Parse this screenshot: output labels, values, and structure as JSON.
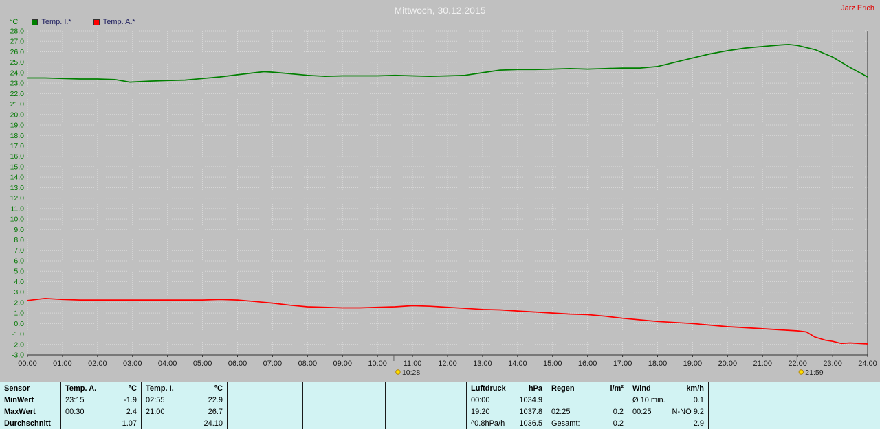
{
  "header": {
    "title": "Mittwoch, 30.12.2015",
    "user": "Jarz Erich"
  },
  "legend": {
    "unit": "°C"
  },
  "chart_data": {
    "type": "line",
    "title": "Mittwoch, 30.12.2015",
    "xlabel": "",
    "ylabel": "°C",
    "ylim": [
      -3.0,
      28.0
    ],
    "y_step": 1.0,
    "grid": true,
    "x_ticks": [
      "00:00",
      "01:00",
      "02:00",
      "03:00",
      "04:00",
      "05:00",
      "06:00",
      "07:00",
      "08:00",
      "09:00",
      "10:00",
      "11:00",
      "12:00",
      "13:00",
      "14:00",
      "15:00",
      "16:00",
      "17:00",
      "18:00",
      "19:00",
      "20:00",
      "21:00",
      "22:00",
      "23:00",
      "24:00"
    ],
    "series": [
      {
        "id": "temp-i",
        "name": "Temp. I.*",
        "color": "#008000",
        "points": [
          [
            0,
            23.5
          ],
          [
            0.5,
            23.5
          ],
          [
            1,
            23.45
          ],
          [
            1.5,
            23.4
          ],
          [
            2,
            23.4
          ],
          [
            2.5,
            23.35
          ],
          [
            2.92,
            23.1
          ],
          [
            3.5,
            23.2
          ],
          [
            4,
            23.25
          ],
          [
            4.5,
            23.3
          ],
          [
            5,
            23.45
          ],
          [
            5.5,
            23.6
          ],
          [
            6,
            23.8
          ],
          [
            6.5,
            24.0
          ],
          [
            6.75,
            24.1
          ],
          [
            7,
            24.05
          ],
          [
            7.5,
            23.9
          ],
          [
            8,
            23.75
          ],
          [
            8.5,
            23.65
          ],
          [
            9,
            23.7
          ],
          [
            9.5,
            23.7
          ],
          [
            10,
            23.7
          ],
          [
            10.5,
            23.75
          ],
          [
            11,
            23.7
          ],
          [
            11.5,
            23.65
          ],
          [
            12,
            23.7
          ],
          [
            12.5,
            23.75
          ],
          [
            13,
            24.0
          ],
          [
            13.5,
            24.25
          ],
          [
            14,
            24.3
          ],
          [
            14.5,
            24.3
          ],
          [
            15,
            24.35
          ],
          [
            15.5,
            24.4
          ],
          [
            16,
            24.35
          ],
          [
            16.5,
            24.4
          ],
          [
            17,
            24.45
          ],
          [
            17.5,
            24.45
          ],
          [
            18,
            24.6
          ],
          [
            18.5,
            25.0
          ],
          [
            19,
            25.4
          ],
          [
            19.5,
            25.8
          ],
          [
            20,
            26.1
          ],
          [
            20.5,
            26.35
          ],
          [
            21,
            26.5
          ],
          [
            21.5,
            26.65
          ],
          [
            21.75,
            26.7
          ],
          [
            22,
            26.6
          ],
          [
            22.5,
            26.2
          ],
          [
            23,
            25.5
          ],
          [
            23.5,
            24.5
          ],
          [
            24,
            23.6
          ]
        ]
      },
      {
        "id": "temp-a",
        "name": "Temp. A.*",
        "color": "#ff0000",
        "points": [
          [
            0,
            2.2
          ],
          [
            0.5,
            2.4
          ],
          [
            1,
            2.3
          ],
          [
            1.5,
            2.25
          ],
          [
            2,
            2.25
          ],
          [
            2.5,
            2.25
          ],
          [
            3,
            2.25
          ],
          [
            3.5,
            2.25
          ],
          [
            4,
            2.25
          ],
          [
            4.5,
            2.25
          ],
          [
            5,
            2.25
          ],
          [
            5.5,
            2.3
          ],
          [
            6,
            2.25
          ],
          [
            6.5,
            2.1
          ],
          [
            7,
            1.95
          ],
          [
            7.5,
            1.75
          ],
          [
            8,
            1.6
          ],
          [
            8.5,
            1.55
          ],
          [
            9,
            1.5
          ],
          [
            9.5,
            1.5
          ],
          [
            10,
            1.55
          ],
          [
            10.5,
            1.6
          ],
          [
            11,
            1.7
          ],
          [
            11.5,
            1.65
          ],
          [
            12,
            1.55
          ],
          [
            12.5,
            1.45
          ],
          [
            13,
            1.35
          ],
          [
            13.5,
            1.3
          ],
          [
            14,
            1.2
          ],
          [
            14.5,
            1.1
          ],
          [
            15,
            1.0
          ],
          [
            15.5,
            0.9
          ],
          [
            16,
            0.85
          ],
          [
            16.5,
            0.7
          ],
          [
            17,
            0.5
          ],
          [
            17.5,
            0.35
          ],
          [
            18,
            0.2
          ],
          [
            18.5,
            0.1
          ],
          [
            19,
            0.0
          ],
          [
            19.5,
            -0.15
          ],
          [
            20,
            -0.3
          ],
          [
            20.5,
            -0.4
          ],
          [
            21,
            -0.5
          ],
          [
            21.5,
            -0.6
          ],
          [
            22,
            -0.7
          ],
          [
            22.25,
            -0.8
          ],
          [
            22.5,
            -1.3
          ],
          [
            22.8,
            -1.6
          ],
          [
            23,
            -1.7
          ],
          [
            23.25,
            -1.9
          ],
          [
            23.5,
            -1.85
          ],
          [
            24,
            -1.95
          ]
        ]
      }
    ],
    "time_markers": [
      {
        "id": "sunrise",
        "label": "10:28",
        "hour": 10.467
      },
      {
        "id": "sunset",
        "label": "21:59",
        "hour": 21.983
      }
    ]
  },
  "table": {
    "row_labels": [
      "Sensor",
      "MinWert",
      "MaxWert",
      "Durchschnitt"
    ],
    "groups": [
      {
        "id": "temp-a",
        "header": "Temp. A.",
        "unit": "°C",
        "rows": [
          [
            "23:15",
            "-1.9"
          ],
          [
            "00:30",
            "2.4"
          ],
          [
            "",
            "1.07"
          ]
        ]
      },
      {
        "id": "temp-i",
        "header": "Temp. I.",
        "unit": "°C",
        "rows": [
          [
            "02:55",
            "22.9"
          ],
          [
            "21:00",
            "26.7"
          ],
          [
            "",
            "24.10"
          ]
        ]
      },
      {
        "id": "empty-1",
        "header": "",
        "unit": "",
        "rows": [
          [
            "",
            ""
          ],
          [
            "",
            ""
          ],
          [
            "",
            ""
          ]
        ]
      },
      {
        "id": "empty-2",
        "header": "",
        "unit": "",
        "rows": [
          [
            "",
            ""
          ],
          [
            "",
            ""
          ],
          [
            "",
            ""
          ]
        ]
      },
      {
        "id": "empty-3",
        "header": "",
        "unit": "",
        "rows": [
          [
            "",
            ""
          ],
          [
            "",
            ""
          ],
          [
            "",
            ""
          ]
        ]
      },
      {
        "id": "luftdruck",
        "header": "Luftdruck",
        "unit": "hPa",
        "rows": [
          [
            "00:00",
            "1034.9"
          ],
          [
            "19:20",
            "1037.8"
          ],
          [
            "^0.8hPa/h",
            "1036.5"
          ]
        ]
      },
      {
        "id": "regen",
        "header": "Regen",
        "unit": "l/m²",
        "rows": [
          [
            "",
            ""
          ],
          [
            "02:25",
            "0.2"
          ],
          [
            "Gesamt:",
            "0.2"
          ]
        ]
      },
      {
        "id": "wind",
        "header": "Wind",
        "unit": "km/h",
        "rows": [
          [
            "Ø 10 min.",
            "0.1"
          ],
          [
            "00:25",
            "N-NO 9.2"
          ],
          [
            "",
            "2.9"
          ]
        ]
      },
      {
        "id": "empty-4",
        "header": "",
        "unit": "",
        "rows": [
          [
            "",
            ""
          ],
          [
            "",
            ""
          ],
          [
            "",
            ""
          ]
        ]
      }
    ]
  },
  "colors": {
    "background": "#c0c0c0",
    "table_background": "#d2f3f3",
    "grid": "#dadada",
    "y_axis_text": "#007800",
    "x_axis_text": "#1a1a1a",
    "title_text": "#f2f2f2",
    "user_text": "#e00000",
    "legend_text": "#202060",
    "temp_i": "#008000",
    "temp_a": "#ff0000",
    "marker_icon": "#ffe000"
  }
}
